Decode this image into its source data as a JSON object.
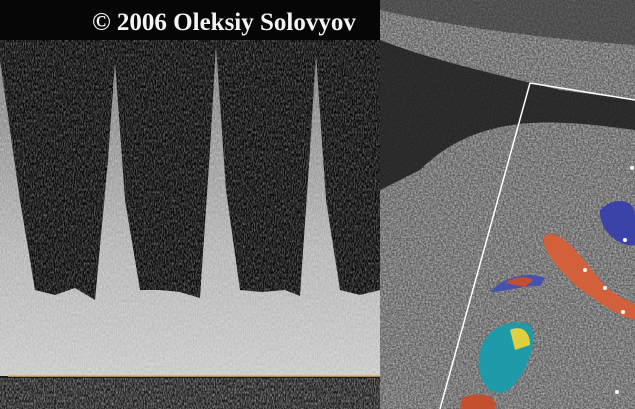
{
  "image": {
    "caption": "© 2006  Oleksiy Solovyov"
  }
}
